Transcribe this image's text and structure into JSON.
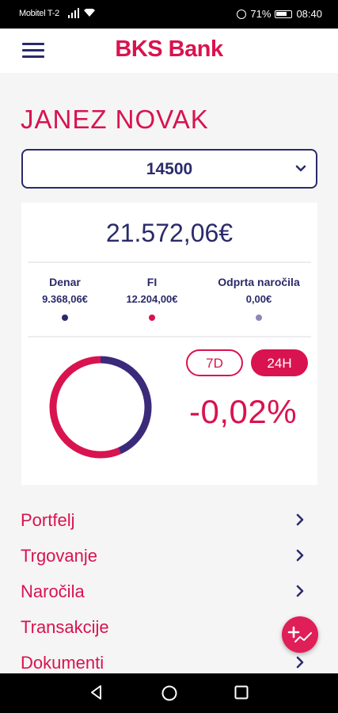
{
  "status_bar": {
    "carrier": "Mobitel T-2",
    "battery": "71%",
    "time": "08:40"
  },
  "header": {
    "logo": "BKS Bank",
    "menu_icon": "hamburger-menu-icon"
  },
  "account": {
    "owner": "JANEZ NOVAK",
    "selected_account": "14500",
    "total_value": "21.572,06€"
  },
  "stats": [
    {
      "label": "Denar",
      "value": "9.368,06€",
      "color": "#2a2a6b"
    },
    {
      "label": "FI",
      "value": "12.204,00€",
      "color": "#d9134f"
    },
    {
      "label": "Odprta naročila",
      "value": "0,00€",
      "color": "#8f86b8"
    }
  ],
  "performance": {
    "period_7d": "7D",
    "period_24h": "24H",
    "active_period": "24H",
    "change": "-0,02%"
  },
  "allocation": {
    "denar_fraction": 0.434,
    "fi_fraction": 0.566,
    "denar_color": "#3b2a7a",
    "fi_color": "#d9134f"
  },
  "menu": [
    {
      "label": "Portfelj"
    },
    {
      "label": "Trgovanje"
    },
    {
      "label": "Naročila"
    },
    {
      "label": "Transakcije"
    },
    {
      "label": "Dokumenti"
    }
  ],
  "colors": {
    "brand": "#d9134f",
    "navy": "#2a2a6b"
  }
}
